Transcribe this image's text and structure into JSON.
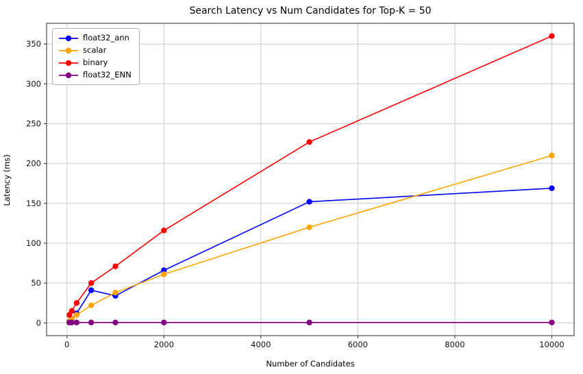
{
  "chart_data": {
    "type": "line",
    "title": "Search Latency vs Num Candidates for Top-K = 50",
    "xlabel": "Number of Candidates",
    "ylabel": "Latency (ms)",
    "x": [
      50,
      100,
      200,
      500,
      1000,
      2000,
      5000,
      10000
    ],
    "series": [
      {
        "name": "float32_ann",
        "color": "#0000ff",
        "values": [
          2,
          5,
          12,
          41,
          34,
          66,
          152,
          169
        ]
      },
      {
        "name": "scalar",
        "color": "#ffa500",
        "values": [
          2,
          5,
          10,
          22,
          38,
          61,
          120,
          210
        ]
      },
      {
        "name": "binary",
        "color": "#ff0000",
        "values": [
          10,
          15,
          25,
          50,
          71,
          116,
          227,
          360
        ]
      },
      {
        "name": "float32_ENN",
        "color": "#800080",
        "values": [
          0.5,
          0.5,
          0.5,
          0.5,
          0.5,
          0.5,
          0.5,
          0.5
        ]
      }
    ],
    "xticks": [
      0,
      2000,
      4000,
      6000,
      8000,
      10000
    ],
    "yticks": [
      0,
      50,
      100,
      150,
      200,
      250,
      300,
      350
    ],
    "xlim": [
      -420,
      10460
    ],
    "ylim": [
      -16,
      376
    ],
    "grid": true,
    "legend_position": "upper left",
    "grid_color": "#c9c9c9",
    "spine_color": "#2a2a2a",
    "tick_label_color": "#111111"
  }
}
